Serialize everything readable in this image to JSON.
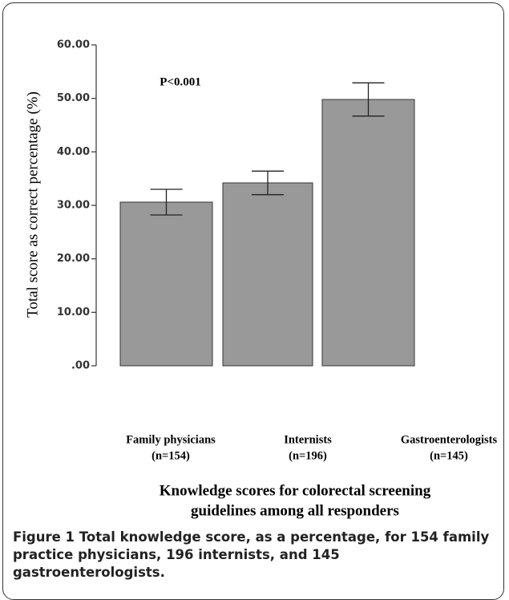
{
  "chart_data": {
    "type": "bar",
    "annotation": "P<0.001",
    "ylabel": "Total score as correct percentage (%)",
    "xlabel": [
      "Knowledge scores for colorectal screening",
      "guidelines among all responders"
    ],
    "categories": [
      [
        "Family physicians",
        "(n=154)"
      ],
      [
        "Internists",
        "(n=196)"
      ],
      [
        "Gastroenterologists",
        "(n=145)"
      ]
    ],
    "values": [
      30.6,
      34.2,
      49.8
    ],
    "errors": [
      2.4,
      2.2,
      3.1
    ],
    "color": "#999999",
    "ylim": [
      0,
      60
    ],
    "yticks": [
      {
        "value": 0,
        "label": ".00"
      },
      {
        "value": 10,
        "label": "10.00"
      },
      {
        "value": 20,
        "label": "20.00"
      },
      {
        "value": 30,
        "label": "30.00"
      },
      {
        "value": 40,
        "label": "40.00"
      },
      {
        "value": 50,
        "label": "50.00"
      },
      {
        "value": 60,
        "label": "60.00"
      }
    ]
  },
  "caption": {
    "label": "Figure 1",
    "text": "Total knowledge score, as a percentage, for 154 family practice physicians, 196 internists, and 145 gastroenterologists."
  }
}
